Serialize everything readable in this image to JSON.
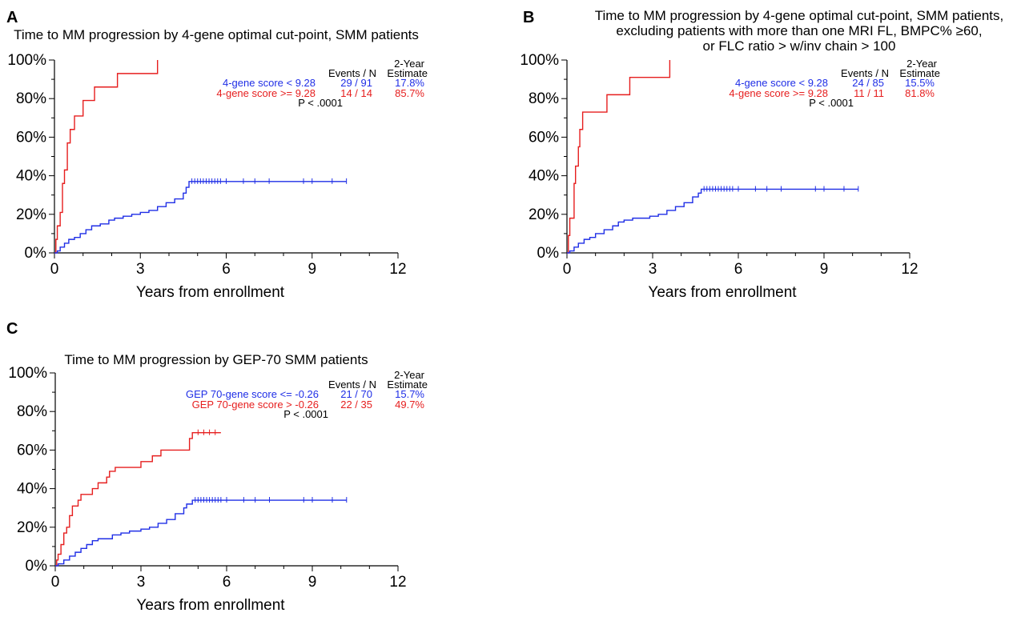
{
  "colors": {
    "series_blue": "#1f2ee6",
    "series_red": "#e61e1e",
    "panel_label": "#1a7a80",
    "axis": "#000000"
  },
  "chart_data": [
    {
      "type": "line",
      "panel": "A",
      "title_lines": [
        "Time to MM progression by 4-gene optimal cut-point, SMM patients"
      ],
      "xlabel": "Years from enrollment",
      "xticks": [
        0,
        3,
        6,
        9,
        12
      ],
      "xtick_labels": [
        "0",
        "3",
        "6",
        "9",
        "12"
      ],
      "xlim": [
        0,
        12
      ],
      "yticks": [
        0,
        20,
        40,
        60,
        80,
        100
      ],
      "ytick_labels": [
        "0%",
        "20%",
        "40%",
        "60%",
        "80%",
        "100%"
      ],
      "ylim": [
        0,
        100
      ],
      "legend": {
        "header_events": "Events / N",
        "header_estimate_1": "2-Year",
        "header_estimate_2": "Estimate",
        "pvalue": "P < .0001",
        "entries": [
          {
            "label": "4-gene score < 9.28",
            "events": "29 / 91",
            "estimate": "17.8%",
            "color": "#1f2ee6"
          },
          {
            "label": "4-gene score >= 9.28",
            "events": "14 / 14",
            "estimate": "85.7%",
            "color": "#e61e1e"
          }
        ]
      },
      "series": [
        {
          "name": "4-gene score >= 9.28",
          "color": "#e61e1e",
          "steps": [
            [
              0,
              0
            ],
            [
              0.05,
              7
            ],
            [
              0.1,
              14
            ],
            [
              0.2,
              21
            ],
            [
              0.28,
              36
            ],
            [
              0.35,
              43
            ],
            [
              0.45,
              57
            ],
            [
              0.55,
              64
            ],
            [
              0.7,
              71
            ],
            [
              1.0,
              79
            ],
            [
              1.4,
              86
            ],
            [
              2.2,
              93
            ],
            [
              3.6,
              100
            ]
          ],
          "end": 3.6,
          "censors": []
        },
        {
          "name": "4-gene score < 9.28",
          "color": "#1f2ee6",
          "steps": [
            [
              0,
              0
            ],
            [
              0.1,
              1
            ],
            [
              0.2,
              3
            ],
            [
              0.35,
              5
            ],
            [
              0.5,
              7
            ],
            [
              0.7,
              8
            ],
            [
              0.9,
              10
            ],
            [
              1.1,
              12
            ],
            [
              1.3,
              14
            ],
            [
              1.6,
              15
            ],
            [
              1.9,
              17
            ],
            [
              2.1,
              18
            ],
            [
              2.4,
              19
            ],
            [
              2.7,
              20
            ],
            [
              3.0,
              21
            ],
            [
              3.3,
              22
            ],
            [
              3.6,
              24
            ],
            [
              3.9,
              26
            ],
            [
              4.2,
              28
            ],
            [
              4.5,
              31
            ],
            [
              4.6,
              34
            ],
            [
              4.7,
              37
            ]
          ],
          "end": 10.2,
          "censors": [
            4.8,
            4.9,
            5.0,
            5.1,
            5.2,
            5.3,
            5.4,
            5.5,
            5.6,
            5.7,
            5.8,
            6.0,
            6.6,
            7.0,
            7.5,
            8.7,
            9.0,
            9.7,
            10.2
          ]
        }
      ]
    },
    {
      "type": "line",
      "panel": "B",
      "title_lines": [
        "Time to MM progression by 4-gene optimal cut-point, SMM patients,",
        "excluding patients with more than one MRI FL, BMPC% ≥60,",
        "or FLC ratio > w/inv chain > 100"
      ],
      "xlabel": "Years from enrollment",
      "xticks": [
        0,
        3,
        6,
        9,
        12
      ],
      "xtick_labels": [
        "0",
        "3",
        "6",
        "9",
        "12"
      ],
      "xlim": [
        0,
        12
      ],
      "yticks": [
        0,
        20,
        40,
        60,
        80,
        100
      ],
      "ytick_labels": [
        "0%",
        "20%",
        "40%",
        "60%",
        "80%",
        "100%"
      ],
      "ylim": [
        0,
        100
      ],
      "legend": {
        "header_events": "Events / N",
        "header_estimate_1": "2-Year",
        "header_estimate_2": "Estimate",
        "pvalue": "P < .0001",
        "entries": [
          {
            "label": "4-gene score < 9.28",
            "events": "24 / 85",
            "estimate": "15.5%",
            "color": "#1f2ee6"
          },
          {
            "label": "4-gene score >= 9.28",
            "events": "11 / 11",
            "estimate": "81.8%",
            "color": "#e61e1e"
          }
        ]
      },
      "series": [
        {
          "name": "4-gene score >= 9.28",
          "color": "#e61e1e",
          "steps": [
            [
              0,
              0
            ],
            [
              0.05,
              9
            ],
            [
              0.1,
              18
            ],
            [
              0.25,
              36
            ],
            [
              0.3,
              45
            ],
            [
              0.4,
              55
            ],
            [
              0.45,
              64
            ],
            [
              0.55,
              73
            ],
            [
              1.4,
              82
            ],
            [
              2.2,
              91
            ],
            [
              3.6,
              100
            ]
          ],
          "end": 3.6,
          "censors": []
        },
        {
          "name": "4-gene score < 9.28",
          "color": "#1f2ee6",
          "steps": [
            [
              0,
              0
            ],
            [
              0.1,
              1
            ],
            [
              0.25,
              3
            ],
            [
              0.4,
              5
            ],
            [
              0.6,
              7
            ],
            [
              0.8,
              8
            ],
            [
              1.0,
              10
            ],
            [
              1.3,
              12
            ],
            [
              1.6,
              14
            ],
            [
              1.8,
              16
            ],
            [
              2.0,
              17
            ],
            [
              2.3,
              18
            ],
            [
              2.9,
              19
            ],
            [
              3.2,
              20
            ],
            [
              3.5,
              22
            ],
            [
              3.8,
              24
            ],
            [
              4.1,
              26
            ],
            [
              4.4,
              29
            ],
            [
              4.6,
              31
            ],
            [
              4.7,
              33
            ]
          ],
          "end": 10.2,
          "censors": [
            4.8,
            4.9,
            5.0,
            5.1,
            5.2,
            5.3,
            5.4,
            5.5,
            5.6,
            5.7,
            5.8,
            6.0,
            6.6,
            7.0,
            7.5,
            8.7,
            9.0,
            9.7,
            10.2
          ]
        }
      ]
    },
    {
      "type": "line",
      "panel": "C",
      "title_lines": [
        "Time to MM progression by GEP-70 SMM patients"
      ],
      "xlabel": "Years from enrollment",
      "xticks": [
        0,
        3,
        6,
        9,
        12
      ],
      "xtick_labels": [
        "0",
        "3",
        "6",
        "9",
        "12"
      ],
      "xlim": [
        0,
        12
      ],
      "yticks": [
        0,
        20,
        40,
        60,
        80,
        100
      ],
      "ytick_labels": [
        "0%",
        "20%",
        "40%",
        "60%",
        "80%",
        "100%"
      ],
      "ylim": [
        0,
        100
      ],
      "legend": {
        "header_events": "Events / N",
        "header_estimate_1": "2-Year",
        "header_estimate_2": "Estimate",
        "pvalue": "P < .0001",
        "entries": [
          {
            "label": "GEP 70-gene score <= -0.26",
            "events": "21 / 70",
            "estimate": "15.7%",
            "color": "#1f2ee6"
          },
          {
            "label": "GEP 70-gene score > -0.26",
            "events": "22 / 35",
            "estimate": "49.7%",
            "color": "#e61e1e"
          }
        ]
      },
      "series": [
        {
          "name": "GEP 70-gene score > -0.26",
          "color": "#e61e1e",
          "steps": [
            [
              0,
              0
            ],
            [
              0.05,
              3
            ],
            [
              0.1,
              6
            ],
            [
              0.2,
              11
            ],
            [
              0.3,
              17
            ],
            [
              0.4,
              20
            ],
            [
              0.5,
              26
            ],
            [
              0.6,
              31
            ],
            [
              0.8,
              34
            ],
            [
              0.9,
              37
            ],
            [
              1.3,
              40
            ],
            [
              1.5,
              43
            ],
            [
              1.8,
              46
            ],
            [
              1.9,
              49
            ],
            [
              2.1,
              51
            ],
            [
              3.0,
              54
            ],
            [
              3.4,
              57
            ],
            [
              3.7,
              60
            ],
            [
              4.7,
              66
            ],
            [
              4.8,
              69
            ]
          ],
          "end": 5.8,
          "censors": [
            5.0,
            5.2,
            5.4,
            5.6
          ]
        },
        {
          "name": "GEP 70-gene score <= -0.26",
          "color": "#1f2ee6",
          "steps": [
            [
              0,
              0
            ],
            [
              0.1,
              1
            ],
            [
              0.3,
              3
            ],
            [
              0.5,
              5
            ],
            [
              0.7,
              7
            ],
            [
              0.9,
              9
            ],
            [
              1.1,
              11
            ],
            [
              1.3,
              13
            ],
            [
              1.5,
              14
            ],
            [
              2.0,
              16
            ],
            [
              2.3,
              17
            ],
            [
              2.6,
              18
            ],
            [
              3.0,
              19
            ],
            [
              3.3,
              20
            ],
            [
              3.6,
              22
            ],
            [
              3.9,
              24
            ],
            [
              4.2,
              27
            ],
            [
              4.5,
              30
            ],
            [
              4.6,
              32
            ],
            [
              4.8,
              34
            ]
          ],
          "end": 10.2,
          "censors": [
            4.9,
            5.0,
            5.1,
            5.2,
            5.3,
            5.4,
            5.5,
            5.6,
            5.7,
            5.8,
            6.0,
            6.6,
            7.0,
            7.5,
            8.7,
            9.0,
            9.7,
            10.2
          ]
        }
      ]
    }
  ]
}
